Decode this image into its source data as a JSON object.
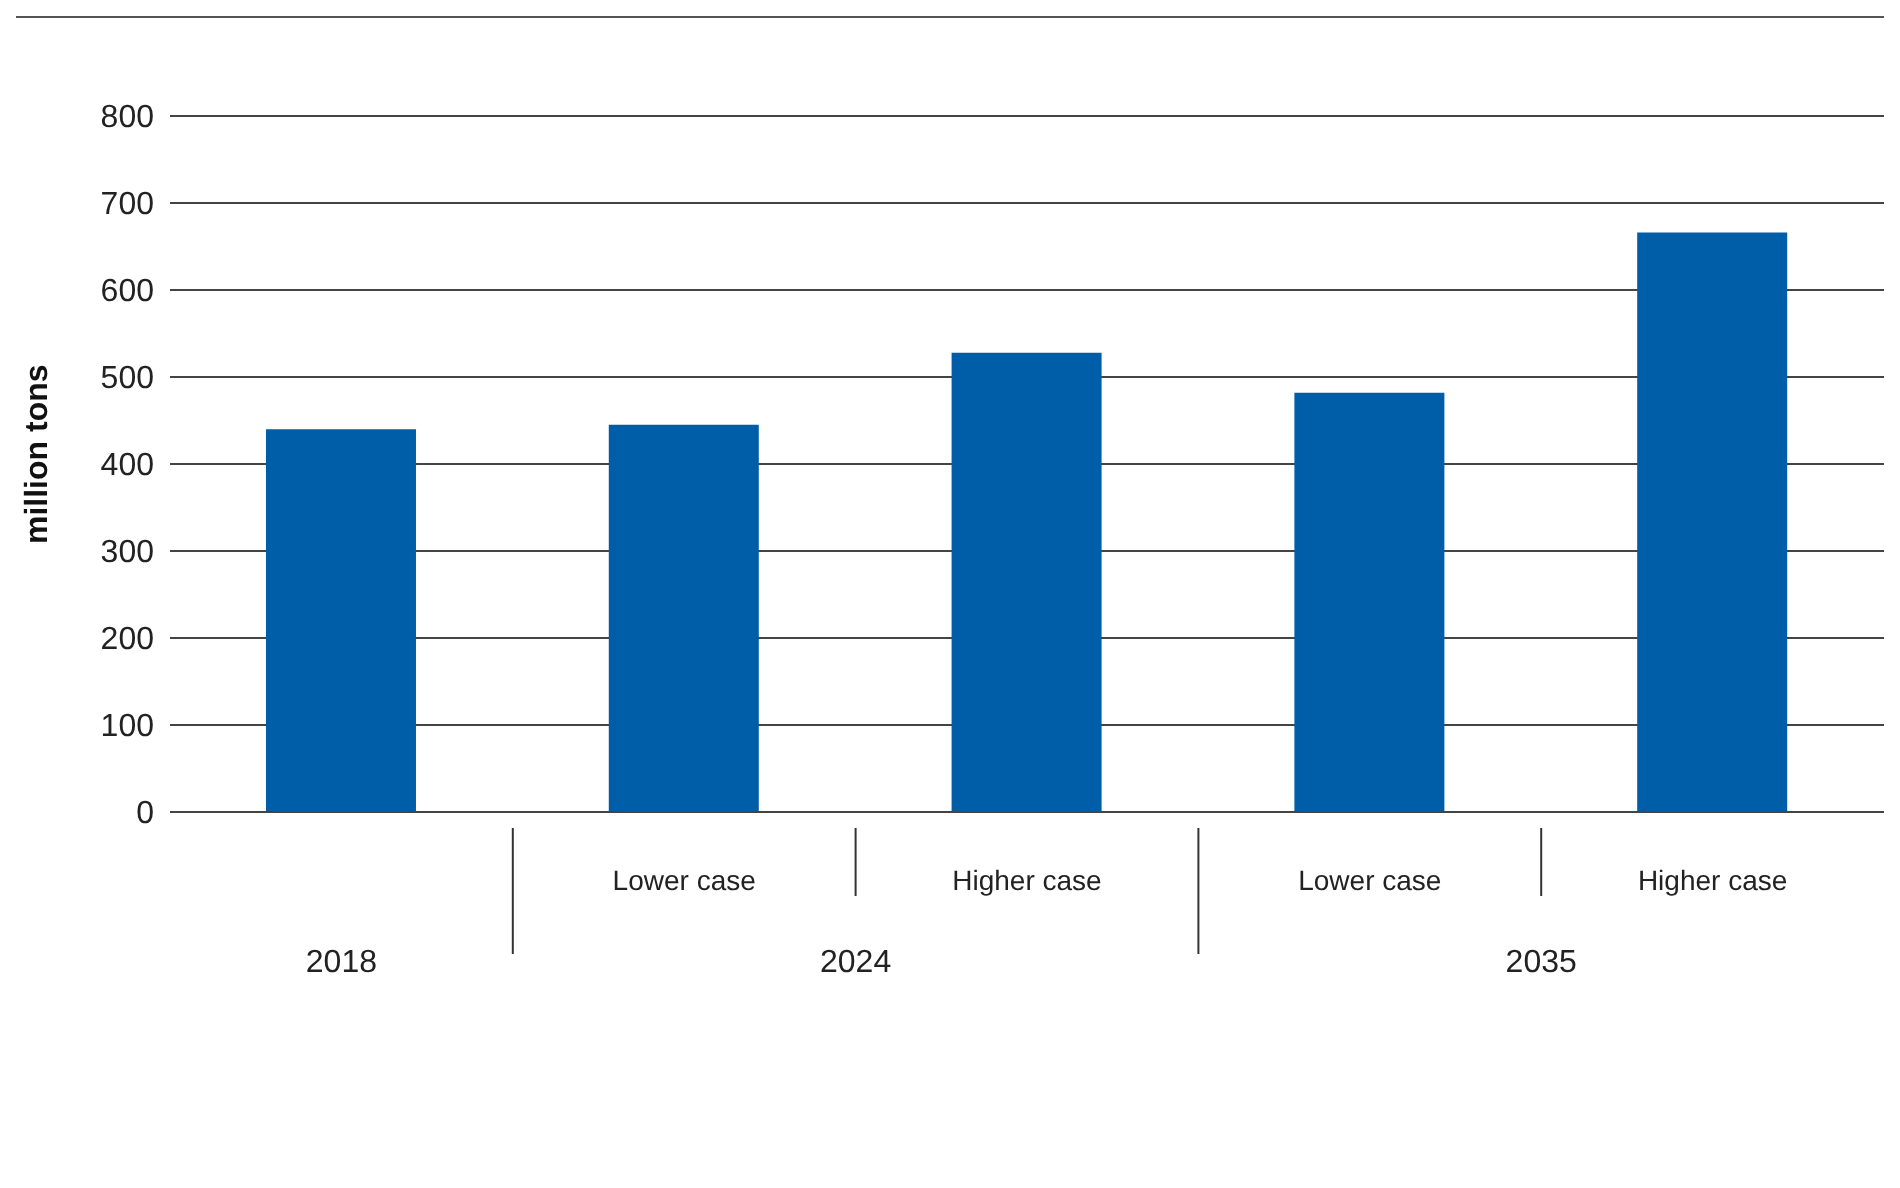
{
  "chart_data": {
    "type": "bar",
    "ylabel": "million tons",
    "categories": [
      null,
      "Lower case",
      "Higher case",
      "Lower case",
      "Higher case"
    ],
    "values": [
      440,
      445,
      528,
      482,
      666
    ],
    "color": "#005ea8",
    "ylim": [
      0,
      800
    ],
    "yticks": [
      0,
      100,
      200,
      300,
      400,
      500,
      600,
      700,
      800
    ],
    "grid": "y",
    "annotations": [
      "2018",
      "2024",
      "2035"
    ]
  }
}
